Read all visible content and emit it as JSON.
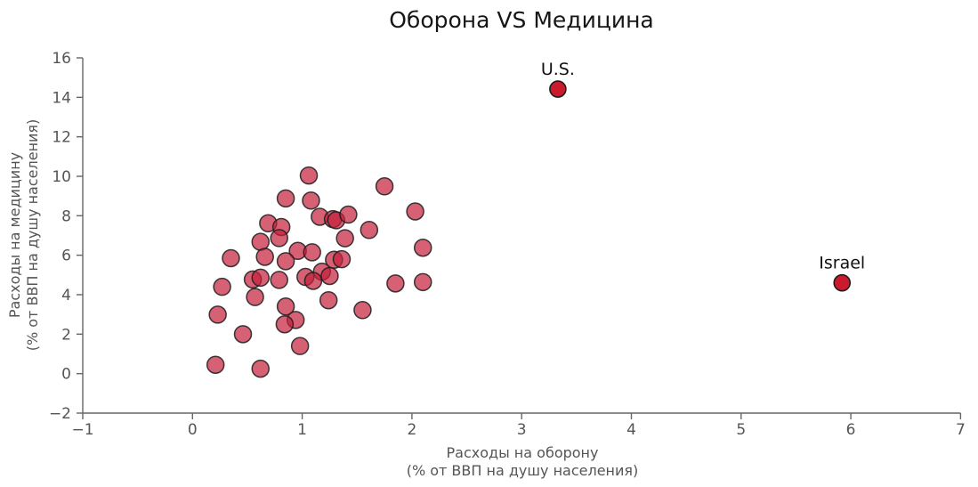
{
  "figure": {
    "background": "#ffffff"
  },
  "chart_data": {
    "type": "scatter",
    "title": "Оборона VS Медицина",
    "xlabel_line1": "Расходы на оборону",
    "xlabel_line2": "(% от ВВП на душу населения)",
    "ylabel_line1": "Расходы на медицину",
    "ylabel_line2": "(% от ВВП на душу населения)",
    "xlim": [
      -1,
      7
    ],
    "ylim": [
      -2,
      16
    ],
    "xticks": [
      -1,
      0,
      1,
      2,
      3,
      4,
      5,
      6,
      7
    ],
    "yticks": [
      -2,
      0,
      2,
      4,
      6,
      8,
      10,
      12,
      14,
      16
    ],
    "grid": false,
    "legend": null,
    "colors": {
      "title_text": "#161616",
      "axis_text": "#555555",
      "spine": "#666666",
      "cluster_fill": "#c41e3a",
      "cluster_fill_opacity": 0.7,
      "highlight_fill": "#cb1a2e",
      "marker_edge": "#1c1c1c",
      "annotation_text": "#111111"
    },
    "series": [
      {
        "name": "countries-cluster",
        "marker_radius": 9.5,
        "points": [
          [
            1.06,
            10.04
          ],
          [
            1.75,
            9.49
          ],
          [
            0.85,
            8.88
          ],
          [
            1.08,
            8.77
          ],
          [
            1.16,
            7.95
          ],
          [
            1.28,
            7.83
          ],
          [
            1.31,
            7.77
          ],
          [
            1.42,
            8.06
          ],
          [
            2.03,
            8.22
          ],
          [
            0.69,
            7.62
          ],
          [
            0.81,
            7.43
          ],
          [
            1.61,
            7.28
          ],
          [
            1.39,
            6.86
          ],
          [
            0.79,
            6.87
          ],
          [
            0.62,
            6.68
          ],
          [
            2.1,
            6.38
          ],
          [
            0.96,
            6.22
          ],
          [
            1.09,
            6.15
          ],
          [
            0.35,
            5.85
          ],
          [
            0.66,
            5.92
          ],
          [
            0.85,
            5.7
          ],
          [
            1.29,
            5.77
          ],
          [
            1.36,
            5.8
          ],
          [
            1.18,
            5.17
          ],
          [
            1.03,
            4.9
          ],
          [
            1.25,
            4.95
          ],
          [
            1.1,
            4.7
          ],
          [
            0.55,
            4.77
          ],
          [
            0.62,
            4.86
          ],
          [
            0.79,
            4.75
          ],
          [
            0.27,
            4.4
          ],
          [
            1.85,
            4.57
          ],
          [
            2.1,
            4.64
          ],
          [
            0.57,
            3.88
          ],
          [
            1.24,
            3.72
          ],
          [
            0.23,
            2.99
          ],
          [
            0.85,
            3.4
          ],
          [
            0.94,
            2.72
          ],
          [
            0.84,
            2.5
          ],
          [
            1.55,
            3.22
          ],
          [
            0.46,
            2.0
          ],
          [
            0.98,
            1.4
          ],
          [
            0.21,
            0.45
          ],
          [
            0.62,
            0.25
          ]
        ]
      },
      {
        "name": "annotated-countries",
        "marker_radius": 9,
        "points_labeled": [
          {
            "label": "U.S.",
            "x": 3.33,
            "y": 14.42
          },
          {
            "label": "Israel",
            "x": 5.92,
            "y": 4.6
          }
        ]
      }
    ]
  }
}
